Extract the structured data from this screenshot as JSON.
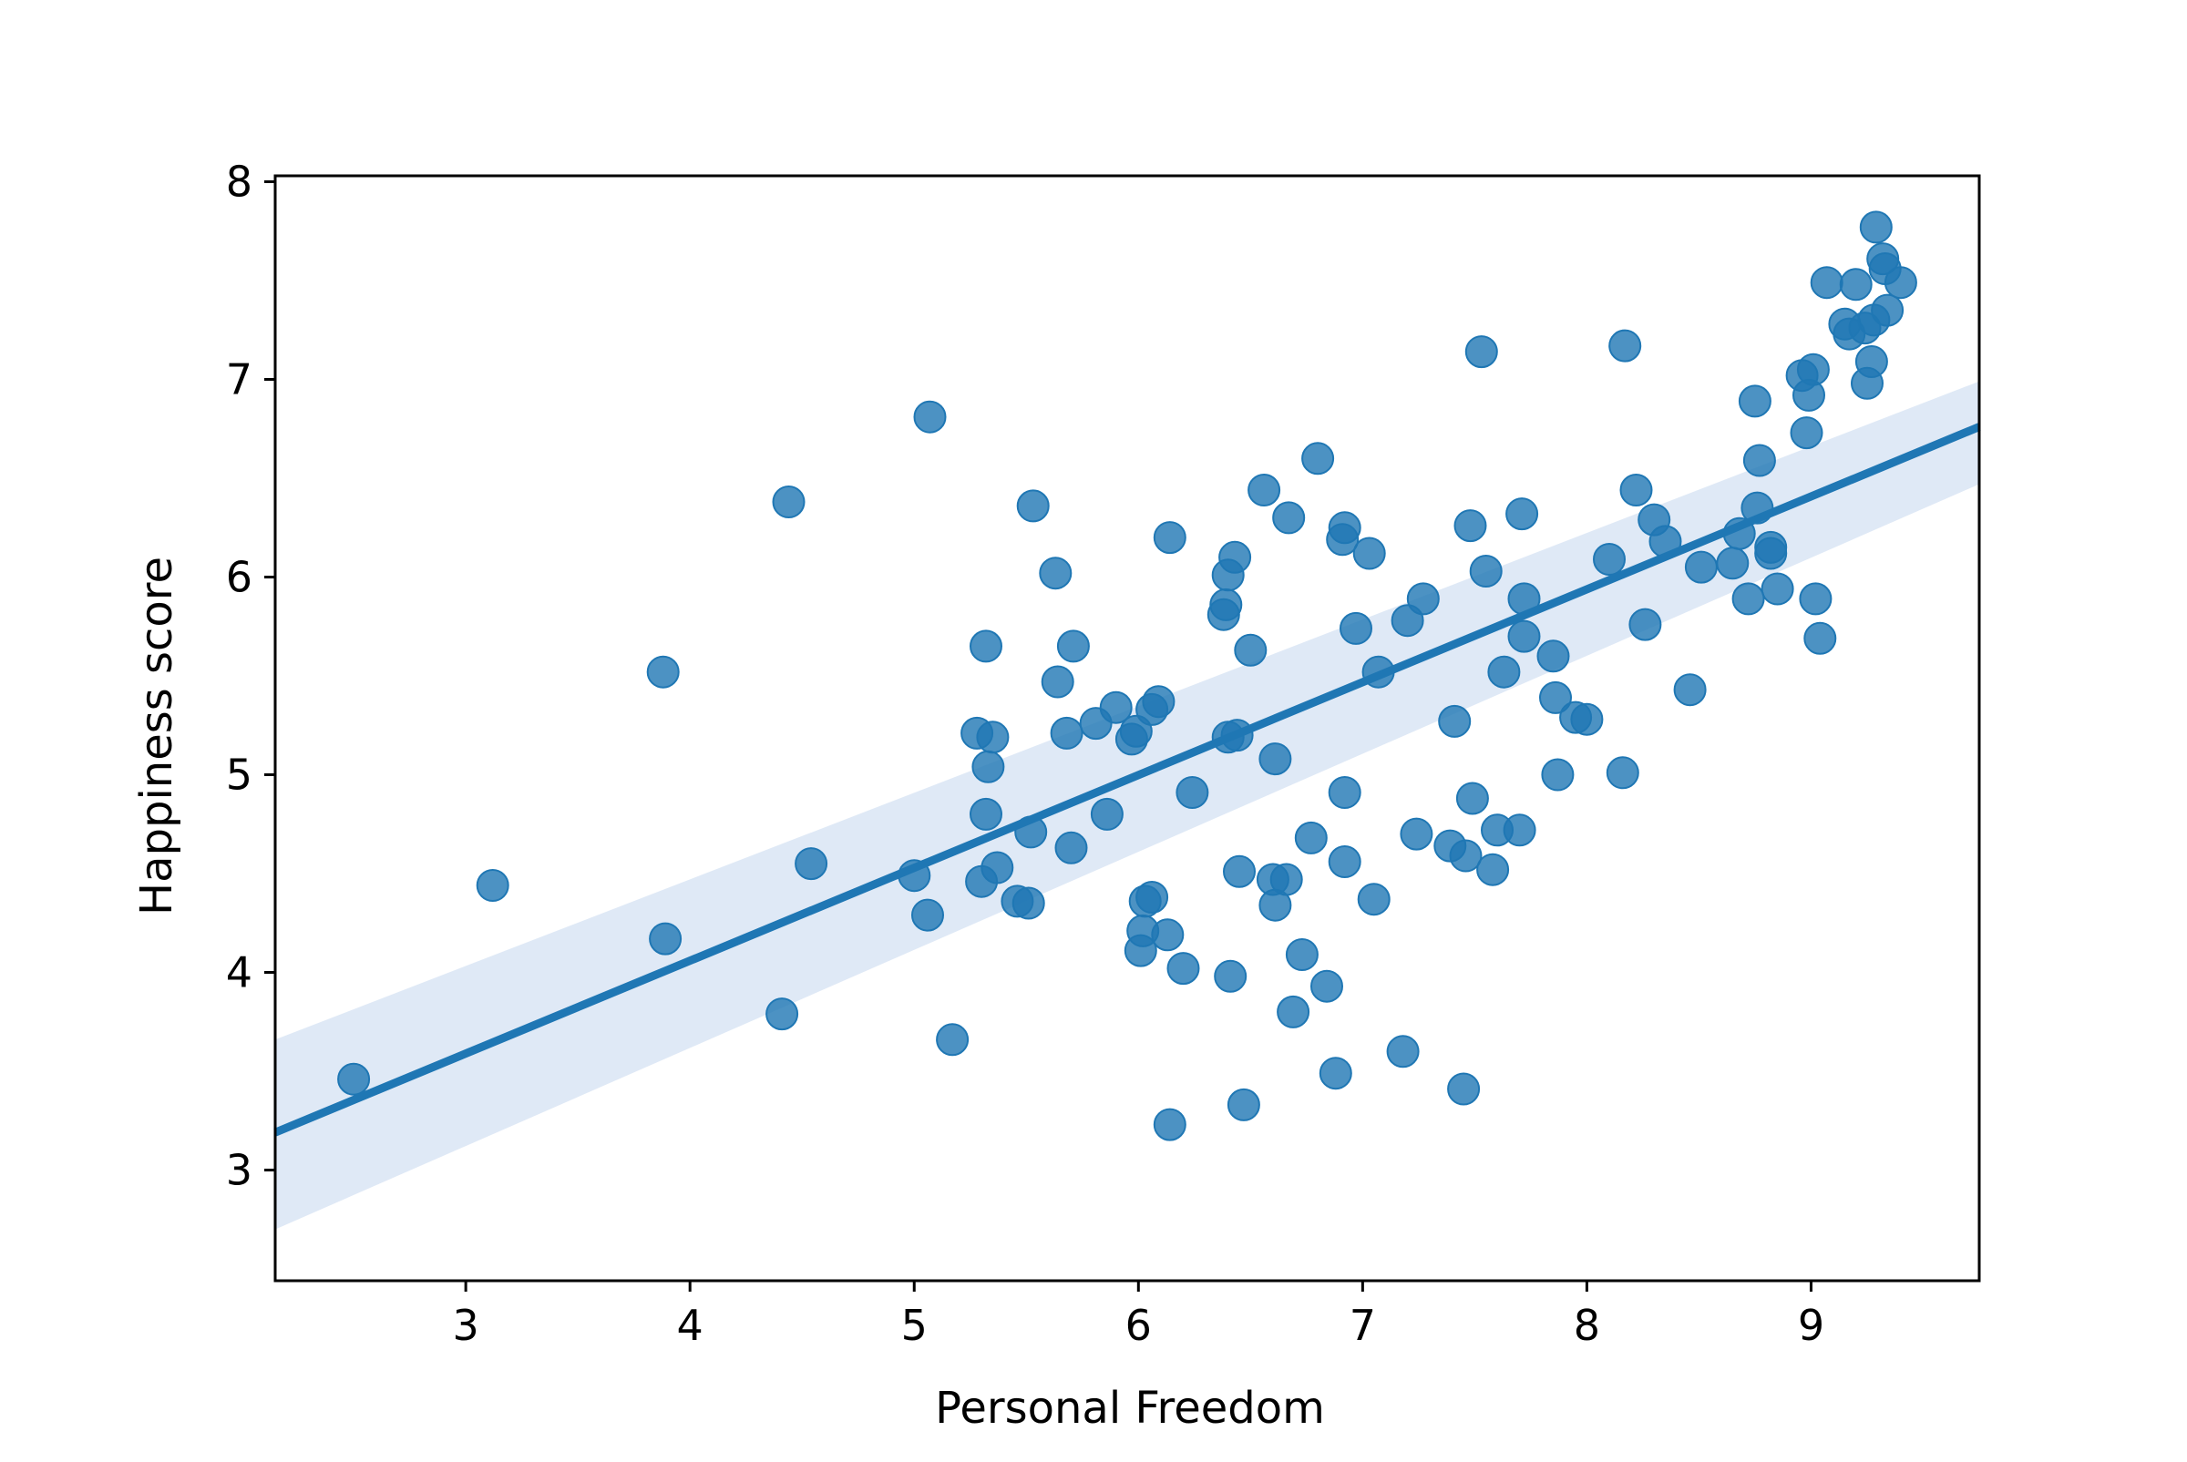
{
  "chart_data": {
    "type": "scatter",
    "title": "",
    "xlabel": "Personal Freedom",
    "ylabel": "Happiness score",
    "xlim": [
      2.15,
      9.75
    ],
    "ylim": [
      2.44,
      8.03
    ],
    "x_ticks": [
      3,
      4,
      5,
      6,
      7,
      8,
      9
    ],
    "y_ticks": [
      3,
      4,
      5,
      6,
      7,
      8
    ],
    "grid": false,
    "legend": "none",
    "colors": {
      "points": "#1f77b4",
      "line": "#1f77b4",
      "band": "#aec7e8"
    },
    "regression": {
      "x_start": 2.15,
      "y_start": 3.19,
      "x_end": 9.75,
      "y_end": 6.76,
      "ci_lower_start": 2.7,
      "ci_upper_start": 3.66,
      "ci_lower_end": 6.47,
      "ci_upper_end": 6.99
    },
    "points": [
      [
        2.5,
        3.46
      ],
      [
        3.12,
        4.44
      ],
      [
        3.88,
        5.52
      ],
      [
        3.89,
        4.17
      ],
      [
        4.41,
        3.79
      ],
      [
        4.44,
        6.38
      ],
      [
        4.54,
        4.55
      ],
      [
        5.0,
        4.49
      ],
      [
        5.06,
        4.29
      ],
      [
        5.07,
        6.81
      ],
      [
        5.17,
        3.66
      ],
      [
        5.28,
        5.21
      ],
      [
        5.3,
        4.46
      ],
      [
        5.32,
        5.65
      ],
      [
        5.32,
        4.8
      ],
      [
        5.33,
        5.04
      ],
      [
        5.35,
        5.19
      ],
      [
        5.37,
        4.53
      ],
      [
        5.46,
        4.36
      ],
      [
        5.51,
        4.35
      ],
      [
        5.52,
        4.71
      ],
      [
        5.53,
        6.36
      ],
      [
        5.63,
        6.02
      ],
      [
        5.64,
        5.47
      ],
      [
        5.68,
        5.21
      ],
      [
        5.7,
        4.63
      ],
      [
        5.71,
        5.65
      ],
      [
        5.81,
        5.26
      ],
      [
        5.86,
        4.8
      ],
      [
        5.9,
        5.34
      ],
      [
        5.97,
        5.18
      ],
      [
        5.99,
        5.22
      ],
      [
        6.01,
        4.11
      ],
      [
        6.02,
        4.21
      ],
      [
        6.03,
        4.36
      ],
      [
        6.06,
        4.38
      ],
      [
        6.06,
        5.33
      ],
      [
        6.09,
        5.37
      ],
      [
        6.13,
        4.19
      ],
      [
        6.14,
        6.2
      ],
      [
        6.14,
        3.23
      ],
      [
        6.2,
        4.02
      ],
      [
        6.24,
        4.91
      ],
      [
        6.38,
        5.81
      ],
      [
        6.39,
        5.86
      ],
      [
        6.4,
        6.01
      ],
      [
        6.4,
        5.19
      ],
      [
        6.41,
        3.98
      ],
      [
        6.43,
        6.1
      ],
      [
        6.44,
        5.2
      ],
      [
        6.45,
        4.51
      ],
      [
        6.47,
        3.33
      ],
      [
        6.5,
        5.63
      ],
      [
        6.56,
        6.44
      ],
      [
        6.6,
        4.47
      ],
      [
        6.61,
        4.34
      ],
      [
        6.61,
        5.08
      ],
      [
        6.66,
        4.47
      ],
      [
        6.67,
        6.3
      ],
      [
        6.69,
        3.8
      ],
      [
        6.73,
        4.09
      ],
      [
        6.77,
        4.68
      ],
      [
        6.8,
        6.6
      ],
      [
        6.84,
        3.93
      ],
      [
        6.88,
        3.49
      ],
      [
        6.91,
        6.19
      ],
      [
        6.92,
        4.56
      ],
      [
        6.92,
        4.91
      ],
      [
        6.92,
        6.25
      ],
      [
        6.97,
        5.74
      ],
      [
        7.03,
        6.12
      ],
      [
        7.05,
        4.37
      ],
      [
        7.07,
        5.52
      ],
      [
        7.18,
        3.6
      ],
      [
        7.2,
        5.78
      ],
      [
        7.24,
        4.7
      ],
      [
        7.27,
        5.89
      ],
      [
        7.39,
        4.64
      ],
      [
        7.41,
        5.27
      ],
      [
        7.45,
        3.41
      ],
      [
        7.46,
        4.59
      ],
      [
        7.48,
        6.26
      ],
      [
        7.49,
        4.88
      ],
      [
        7.53,
        7.14
      ],
      [
        7.55,
        6.03
      ],
      [
        7.58,
        4.52
      ],
      [
        7.6,
        4.72
      ],
      [
        7.63,
        5.52
      ],
      [
        7.7,
        4.72
      ],
      [
        7.71,
        6.32
      ],
      [
        7.72,
        5.7
      ],
      [
        7.72,
        5.89
      ],
      [
        7.85,
        5.6
      ],
      [
        7.86,
        5.39
      ],
      [
        7.87,
        5.0
      ],
      [
        7.95,
        5.29
      ],
      [
        8.0,
        5.28
      ],
      [
        8.1,
        6.09
      ],
      [
        8.16,
        5.01
      ],
      [
        8.17,
        7.17
      ],
      [
        8.22,
        6.44
      ],
      [
        8.26,
        5.76
      ],
      [
        8.3,
        6.29
      ],
      [
        8.35,
        6.18
      ],
      [
        8.46,
        5.43
      ],
      [
        8.51,
        6.05
      ],
      [
        8.65,
        6.07
      ],
      [
        8.68,
        6.22
      ],
      [
        8.72,
        5.89
      ],
      [
        8.75,
        6.89
      ],
      [
        8.76,
        6.35
      ],
      [
        8.77,
        6.59
      ],
      [
        8.82,
        6.12
      ],
      [
        8.82,
        6.15
      ],
      [
        8.85,
        5.94
      ],
      [
        8.96,
        7.02
      ],
      [
        8.98,
        6.73
      ],
      [
        8.99,
        6.92
      ],
      [
        9.01,
        7.05
      ],
      [
        9.02,
        5.89
      ],
      [
        9.04,
        5.69
      ],
      [
        9.07,
        7.49
      ],
      [
        9.15,
        7.28
      ],
      [
        9.17,
        7.23
      ],
      [
        9.2,
        7.48
      ],
      [
        9.24,
        7.26
      ],
      [
        9.25,
        6.98
      ],
      [
        9.27,
        7.09
      ],
      [
        9.28,
        7.3
      ],
      [
        9.29,
        7.77
      ],
      [
        9.32,
        7.61
      ],
      [
        9.33,
        7.56
      ],
      [
        9.34,
        7.35
      ],
      [
        9.4,
        7.49
      ]
    ]
  }
}
